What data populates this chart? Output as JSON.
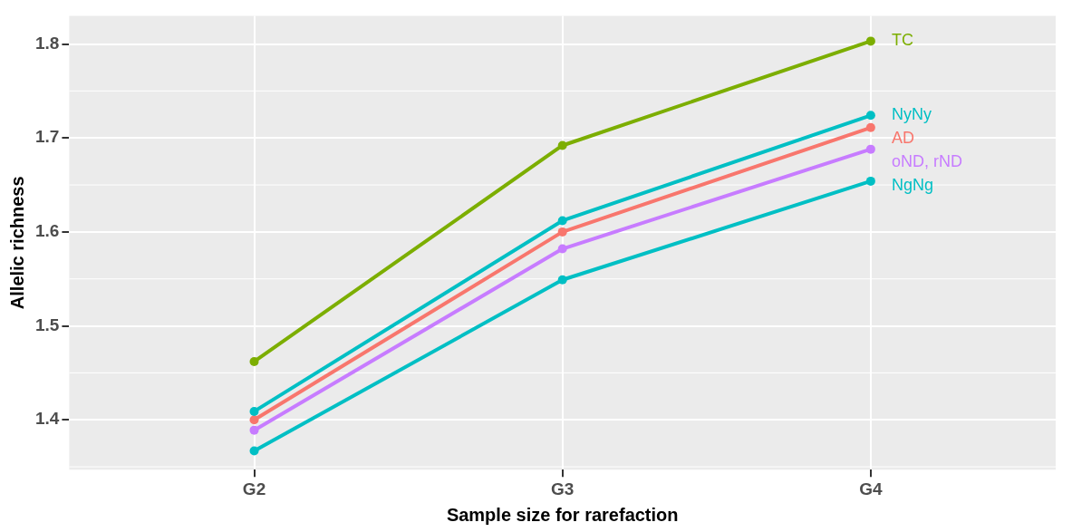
{
  "chart_data": {
    "type": "line",
    "xlabel": "Sample size for rarefaction",
    "ylabel": "Allelic richness",
    "categories": [
      "G2",
      "G3",
      "G4"
    ],
    "series": [
      {
        "name": "TC",
        "color": "#7cae00",
        "values": [
          1.462,
          1.692,
          1.803
        ]
      },
      {
        "name": "NyNy",
        "color": "#00bfc4",
        "values": [
          1.409,
          1.612,
          1.724
        ]
      },
      {
        "name": "AD",
        "color": "#f8766d",
        "values": [
          1.4,
          1.6,
          1.711
        ]
      },
      {
        "name": "oND, rND",
        "color": "#c77cff",
        "values": [
          1.389,
          1.582,
          1.688
        ]
      },
      {
        "name": "NgNg",
        "color": "#00bfc4",
        "values": [
          1.367,
          1.549,
          1.654
        ]
      }
    ],
    "ylim": [
      1.347,
      1.83
    ],
    "yticks": [
      1.4,
      1.5,
      1.6,
      1.7,
      1.8
    ],
    "grid": true,
    "legend": false,
    "marker": "circle",
    "line_style": "solid"
  }
}
